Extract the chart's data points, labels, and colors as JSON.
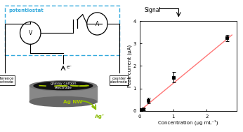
{
  "scatter_x": [
    0.05,
    0.1,
    0.25,
    1.0,
    2.6
  ],
  "scatter_y": [
    0.05,
    0.08,
    0.45,
    1.5,
    3.25
  ],
  "scatter_yerr": [
    0.04,
    0.05,
    0.12,
    0.22,
    0.15
  ],
  "line_x0": 0.0,
  "line_x1": 2.75,
  "line_slope": 1.23,
  "xlabel": "Concentration (μg mL⁻¹)",
  "ylabel": "Peak current (μA)",
  "xlim": [
    0,
    2.9
  ],
  "ylim": [
    0,
    4.0
  ],
  "xticks": [
    0,
    1,
    2
  ],
  "yticks": [
    0,
    1,
    2,
    3,
    4
  ],
  "line_color": "#ff7777",
  "scatter_color": "#000000",
  "signal_label": "Signal",
  "bg_color": "#ffffff",
  "potentiostat_color": "#33aadd",
  "agnw_color": "#aacc00",
  "agplus_color": "#88bb00"
}
